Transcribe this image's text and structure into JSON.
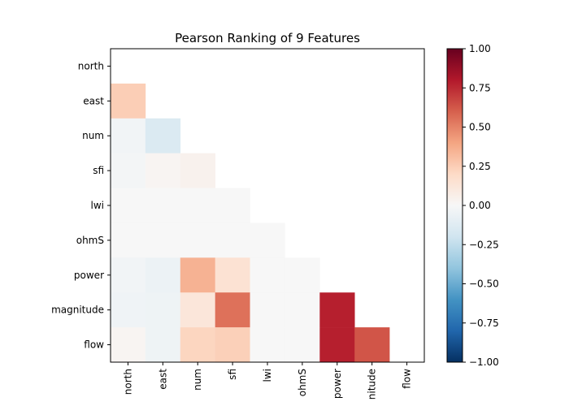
{
  "chart_data": {
    "type": "heatmap",
    "title": "Pearson Ranking of 9 Features",
    "features": [
      "north",
      "east",
      "num",
      "sfi",
      "lwi",
      "ohmS",
      "power",
      "magnitude",
      "flow"
    ],
    "x_tick_labels": [
      "north",
      "east",
      "num",
      "sfi",
      "lwi",
      "ohmS",
      "power",
      "nitude",
      "flow"
    ],
    "matrix_lower_triangle": [
      [],
      [
        0.25
      ],
      [
        -0.03,
        -0.15
      ],
      [
        -0.02,
        0.02,
        0.04
      ],
      [
        0.0,
        0.0,
        0.0,
        0.0
      ],
      [
        0.0,
        0.0,
        0.0,
        0.0,
        0.0
      ],
      [
        -0.03,
        -0.06,
        0.35,
        0.15,
        0.0,
        0.0
      ],
      [
        -0.04,
        -0.05,
        0.12,
        0.55,
        0.0,
        0.0,
        0.78
      ],
      [
        0.02,
        -0.05,
        0.22,
        0.24,
        0.0,
        0.0,
        0.78,
        0.63
      ]
    ],
    "colorbar": {
      "range": [
        -1.0,
        1.0
      ],
      "ticks": [
        1.0,
        0.75,
        0.5,
        0.25,
        0.0,
        -0.25,
        -0.5,
        -0.75,
        -1.0
      ],
      "tick_labels": [
        "1.00",
        "0.75",
        "0.50",
        "0.25",
        "0.00",
        "−0.25",
        "−0.50",
        "−0.75",
        "−1.00"
      ],
      "colormap": "RdBu_r"
    },
    "grid": false
  }
}
